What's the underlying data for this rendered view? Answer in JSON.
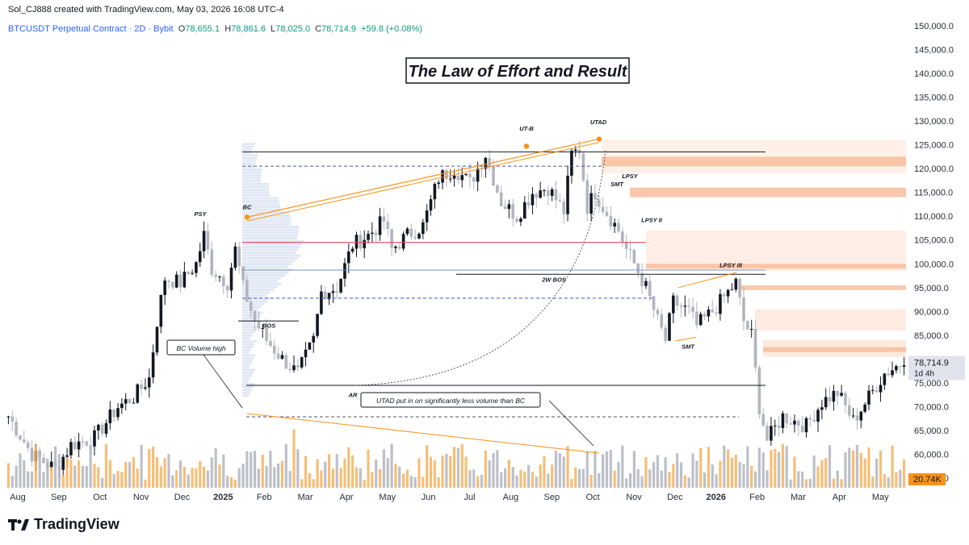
{
  "header": {
    "publisher": "Sol_CJ888 created with TradingView.com, May 03, 2026 16:08 UTC-4"
  },
  "symbol": {
    "name": "BTCUSDT Perpetual Contract · 2D · Bybit",
    "o_label": "O",
    "o": "78,655.1",
    "h_label": "H",
    "h": "78,861.6",
    "l_label": "L",
    "l": "78,025.0",
    "c_label": "C",
    "c": "78,714.9",
    "change": "+59.8 (+0.08%)"
  },
  "branding": {
    "logo_text": "TradingView"
  },
  "colors": {
    "up": "#131722",
    "down": "#b2b5be",
    "accent_orange": "#f7931a",
    "zone": "#fcd5c2",
    "volume_up": "#f5b35e",
    "volume_down": "#b2b5be"
  },
  "chart_data": {
    "type": "candlestick",
    "title": "The Law of Effort and Result",
    "ylim": [
      53000,
      152000
    ],
    "y_ticks": [
      "150,000.0",
      "145,000.0",
      "140,000.0",
      "135,000.0",
      "130,000.0",
      "125,000.0",
      "120,000.0",
      "115,000.0",
      "110,000.0",
      "105,000.0",
      "100,000.0",
      "95,000.0",
      "90,000.0",
      "85,000.0",
      "80,000.0",
      "75,000.0",
      "70,000.0",
      "65,000.0",
      "60,000.0",
      "55,000.0"
    ],
    "x_ticks": [
      {
        "label": "Aug",
        "bold": false
      },
      {
        "label": "Sep",
        "bold": false
      },
      {
        "label": "Oct",
        "bold": false
      },
      {
        "label": "Nov",
        "bold": false
      },
      {
        "label": "Dec",
        "bold": false
      },
      {
        "label": "2025",
        "bold": true
      },
      {
        "label": "Feb",
        "bold": false
      },
      {
        "label": "Mar",
        "bold": false
      },
      {
        "label": "Apr",
        "bold": false
      },
      {
        "label": "May",
        "bold": false
      },
      {
        "label": "Jun",
        "bold": false
      },
      {
        "label": "Jul",
        "bold": false
      },
      {
        "label": "Aug",
        "bold": false
      },
      {
        "label": "Sep",
        "bold": false
      },
      {
        "label": "Oct",
        "bold": false
      },
      {
        "label": "Nov",
        "bold": false
      },
      {
        "label": "Dec",
        "bold": false
      },
      {
        "label": "2026",
        "bold": true
      },
      {
        "label": "Feb",
        "bold": false
      },
      {
        "label": "Mar",
        "bold": false
      },
      {
        "label": "Apr",
        "bold": false
      },
      {
        "label": "May",
        "bold": false
      }
    ],
    "price_path": [
      [
        0,
        68000
      ],
      [
        6,
        60000
      ],
      [
        12,
        57000
      ],
      [
        16,
        62000
      ],
      [
        22,
        63500
      ],
      [
        28,
        70000
      ],
      [
        32,
        72000
      ],
      [
        36,
        76000
      ],
      [
        38,
        88000
      ],
      [
        40,
        97000
      ],
      [
        44,
        96000
      ],
      [
        48,
        100000
      ],
      [
        50,
        106000
      ],
      [
        52,
        99000
      ],
      [
        56,
        96000
      ],
      [
        58,
        103000
      ],
      [
        60,
        95000
      ],
      [
        63,
        88000
      ],
      [
        66,
        84000
      ],
      [
        70,
        80000
      ],
      [
        74,
        77000
      ],
      [
        78,
        84000
      ],
      [
        80,
        94000
      ],
      [
        84,
        95000
      ],
      [
        88,
        104000
      ],
      [
        92,
        106000
      ],
      [
        96,
        109000
      ],
      [
        98,
        103000
      ],
      [
        102,
        106000
      ],
      [
        106,
        108000
      ],
      [
        110,
        118000
      ],
      [
        114,
        120000
      ],
      [
        118,
        117000
      ],
      [
        122,
        123000
      ],
      [
        126,
        113000
      ],
      [
        130,
        110000
      ],
      [
        134,
        115000
      ],
      [
        138,
        116000
      ],
      [
        142,
        111000
      ],
      [
        144,
        123000
      ],
      [
        146,
        124000
      ],
      [
        148,
        112000
      ],
      [
        150,
        115000
      ],
      [
        152,
        112000
      ],
      [
        156,
        107000
      ],
      [
        158,
        103000
      ],
      [
        160,
        100000
      ],
      [
        163,
        95000
      ],
      [
        166,
        88000
      ],
      [
        168,
        84000
      ],
      [
        170,
        92000
      ],
      [
        174,
        90000
      ],
      [
        176,
        87000
      ],
      [
        180,
        90000
      ],
      [
        184,
        94000
      ],
      [
        186,
        96000
      ],
      [
        188,
        88000
      ],
      [
        190,
        85000
      ],
      [
        192,
        70000
      ],
      [
        194,
        63000
      ],
      [
        198,
        68000
      ],
      [
        204,
        66000
      ],
      [
        208,
        71000
      ],
      [
        212,
        73000
      ],
      [
        216,
        67000
      ],
      [
        220,
        72000
      ],
      [
        224,
        77000
      ],
      [
        228,
        79000
      ],
      [
        230,
        78700
      ]
    ],
    "last_price": "78,714.9",
    "countdown": "1d 4h",
    "volume_last": "20.74K",
    "annotations": {
      "psy": "PSY",
      "bc": "BC",
      "ar": "AR",
      "bos": "BOS",
      "utb": "UT-B",
      "utad": "UTAD",
      "lpsy": "LPSY",
      "lpsy2": "LPSY II",
      "lpsy3": "LPSY III",
      "smt1": "SMT",
      "smt2": "SMT",
      "bos2w": "2W BOS",
      "bc_volume": "BC Volume high",
      "utad_note": "UTAD put in on significantly less volume than BC"
    }
  }
}
